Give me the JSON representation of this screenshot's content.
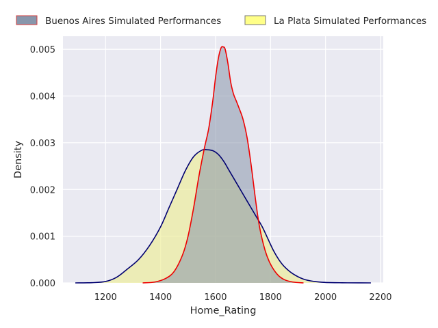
{
  "chart_data": {
    "type": "area",
    "title": "",
    "xlabel": "Home_Rating",
    "ylabel": "Density",
    "xlim": [
      1045,
      2210
    ],
    "ylim": [
      0,
      0.00528
    ],
    "x_ticks": [
      1200,
      1400,
      1600,
      1800,
      2000,
      2200
    ],
    "x_tick_labels": [
      "1200",
      "1400",
      "1600",
      "1800",
      "2000",
      "2200"
    ],
    "y_ticks": [
      0,
      0.001,
      0.002,
      0.003,
      0.004,
      0.005
    ],
    "y_tick_labels": [
      "0.000",
      "0.001",
      "0.002",
      "0.003",
      "0.004",
      "0.005"
    ],
    "grid": true,
    "legend_placement": "top, above plot, horizontal",
    "background_color": "#eaeaf2",
    "series": [
      {
        "name": "Buenos Aires Simulated Performances",
        "fill_color": "#8896ab",
        "fill_opacity": 0.55,
        "line_color": "#ee0000",
        "legend_fill": "#8896ab",
        "legend_edge": "#d63c3c",
        "x": [
          1335,
          1380,
          1420,
          1450,
          1480,
          1500,
          1520,
          1540,
          1560,
          1575,
          1590,
          1600,
          1610,
          1620,
          1628,
          1635,
          1645,
          1655,
          1665,
          1675,
          1685,
          1700,
          1715,
          1730,
          1745,
          1760,
          1780,
          1800,
          1825,
          1850,
          1880,
          1920
        ],
        "y": [
          0.0,
          2e-05,
          0.0001,
          0.00025,
          0.0006,
          0.001,
          0.0016,
          0.0023,
          0.0029,
          0.0033,
          0.0039,
          0.0044,
          0.0048,
          0.00503,
          0.00505,
          0.005,
          0.0047,
          0.0043,
          0.00405,
          0.0039,
          0.00375,
          0.0035,
          0.0031,
          0.0025,
          0.0018,
          0.0012,
          0.0007,
          0.0004,
          0.00018,
          7e-05,
          2e-05,
          0.0
        ]
      },
      {
        "name": "La Plata Simulated Performances",
        "fill_color": "#eeee99",
        "fill_opacity": 0.68,
        "line_color": "#000070",
        "legend_fill": "#ffff88",
        "legend_edge": "#777777",
        "x": [
          1090,
          1150,
          1200,
          1240,
          1280,
          1320,
          1360,
          1400,
          1430,
          1460,
          1490,
          1520,
          1550,
          1570,
          1590,
          1610,
          1630,
          1650,
          1670,
          1690,
          1710,
          1730,
          1750,
          1770,
          1790,
          1810,
          1830,
          1850,
          1880,
          1920,
          1960,
          2000,
          2060,
          2120,
          2165
        ],
        "y": [
          0.0,
          5e-06,
          3e-05,
          0.00012,
          0.0003,
          0.0005,
          0.0008,
          0.0012,
          0.0016,
          0.002,
          0.0024,
          0.0027,
          0.00284,
          0.00285,
          0.00283,
          0.00275,
          0.0026,
          0.0024,
          0.0022,
          0.002,
          0.0018,
          0.0016,
          0.0014,
          0.0012,
          0.00095,
          0.0007,
          0.0005,
          0.00035,
          0.0002,
          8e-05,
          3e-05,
          1e-05,
          3e-06,
          1e-06,
          0.0
        ]
      }
    ]
  }
}
